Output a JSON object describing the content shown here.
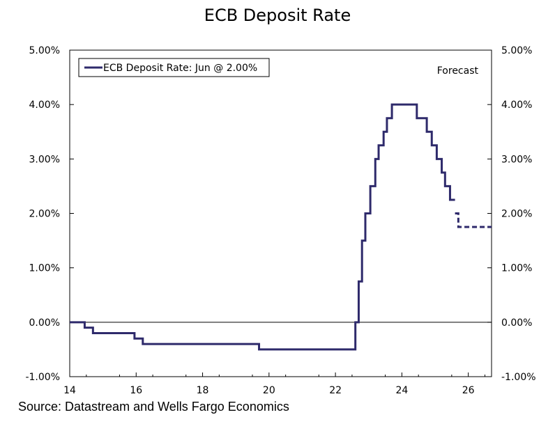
{
  "chart_data": {
    "type": "line",
    "title": "ECB Deposit Rate",
    "xlabel": "",
    "ylabel": "",
    "xlim": [
      14,
      26.7
    ],
    "ylim": [
      -1.0,
      5.0
    ],
    "x_ticks": [
      14,
      16,
      18,
      20,
      22,
      24,
      26
    ],
    "x_tick_labels": [
      "14",
      "16",
      "18",
      "20",
      "22",
      "24",
      "26"
    ],
    "y_ticks": [
      -1,
      0,
      1,
      2,
      3,
      4,
      5
    ],
    "y_tick_labels": [
      "-1.00%",
      "0.00%",
      "1.00%",
      "2.00%",
      "3.00%",
      "4.00%",
      "5.00%"
    ],
    "grid": false,
    "legend": {
      "label": "ECB Deposit Rate: Jun @ 2.00%",
      "placement": "top-left"
    },
    "annotation": "Forecast",
    "series": [
      {
        "name": "ECB Deposit Rate",
        "style": "solid-step",
        "color": "#2e2a6b",
        "x": [
          14.0,
          14.45,
          14.7,
          15.95,
          16.2,
          19.7,
          22.6,
          22.7,
          22.8,
          22.9,
          23.05,
          23.2,
          23.3,
          23.45,
          23.55,
          23.7,
          24.45,
          24.75,
          24.9,
          25.05,
          25.2,
          25.3,
          25.45
        ],
        "values": [
          0.0,
          -0.1,
          -0.2,
          -0.3,
          -0.4,
          -0.5,
          0.0,
          0.75,
          1.5,
          2.0,
          2.5,
          3.0,
          3.25,
          3.5,
          3.75,
          4.0,
          3.75,
          3.5,
          3.25,
          3.0,
          2.75,
          2.5,
          2.25
        ],
        "x_end": 25.6
      },
      {
        "name": "Forecast",
        "style": "dashed-step",
        "color": "#2e2a6b",
        "x": [
          25.6,
          25.7
        ],
        "values": [
          2.0,
          1.75
        ],
        "x_end": 26.7
      }
    ]
  },
  "source": "Source: Datastream and Wells Fargo Economics",
  "colors": {
    "series": "#2e2a6b",
    "axis": "#000000"
  }
}
